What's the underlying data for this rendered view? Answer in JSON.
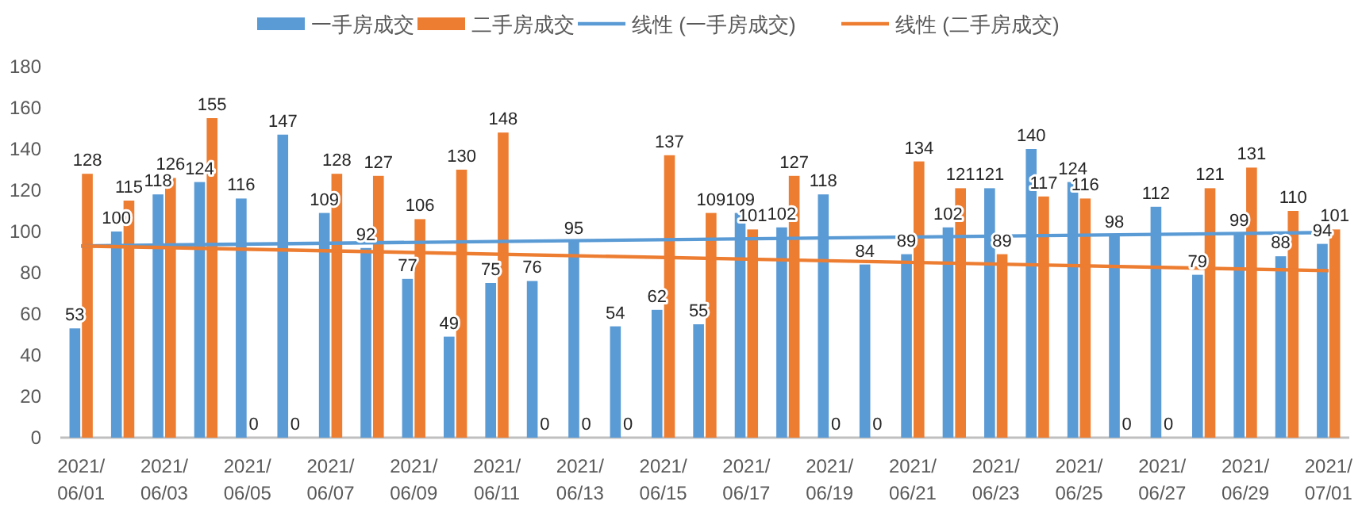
{
  "chart_data": {
    "type": "bar",
    "categories": [
      "2021/06/01",
      null,
      "2021/06/03",
      null,
      "2021/06/05",
      null,
      "2021/06/07",
      null,
      "2021/06/09",
      null,
      "2021/06/11",
      null,
      "2021/06/13",
      null,
      "2021/06/15",
      null,
      "2021/06/17",
      null,
      "2021/06/19",
      null,
      "2021/06/21",
      null,
      "2021/06/23",
      null,
      "2021/06/25",
      null,
      "2021/06/27",
      null,
      "2021/06/29",
      null,
      "2021/07/01"
    ],
    "series": [
      {
        "name": "一手房成交",
        "color": "#5b9bd5",
        "values": [
          53,
          100,
          118,
          124,
          116,
          147,
          109,
          92,
          77,
          49,
          75,
          76,
          95,
          54,
          62,
          55,
          109,
          102,
          118,
          84,
          89,
          102,
          121,
          140,
          124,
          98,
          112,
          79,
          99,
          88,
          94
        ],
        "value_labels": [
          "53",
          "100",
          "118",
          "124",
          "116",
          "147",
          "109",
          "92",
          "77",
          "49",
          "75",
          "76",
          "95",
          "54",
          "62",
          "55",
          "109",
          "102",
          "118",
          "84",
          "89",
          "102",
          "121",
          "140",
          "124",
          "98",
          "112",
          "79",
          "99",
          "88",
          "94"
        ]
      },
      {
        "name": "二手房成交",
        "color": "#ed7d31",
        "values": [
          128,
          115,
          126,
          155,
          0,
          0,
          128,
          127,
          106,
          130,
          148,
          0,
          0,
          0,
          137,
          109,
          101,
          127,
          0,
          0,
          134,
          121,
          89,
          117,
          116,
          0,
          0,
          121,
          131,
          110,
          101
        ],
        "value_labels": [
          "128",
          "115",
          "126",
          "155",
          "0",
          "0",
          "128",
          "127",
          "106",
          "130",
          "148",
          "0",
          "0",
          "0",
          "137",
          "109",
          "101",
          "127",
          "0",
          "0",
          "134",
          "121",
          "89",
          "117",
          "116",
          "0",
          "0",
          "121",
          "131",
          "110",
          "101"
        ]
      },
      {
        "name": "线性 (一手房成交)",
        "type": "line",
        "color": "#5b9bd5",
        "x": [
          "2021/06/01",
          "2021/07/01"
        ],
        "values": [
          93,
          99.5
        ]
      },
      {
        "name": "线性 (二手房成交)",
        "type": "line",
        "color": "#ed7d31",
        "x": [
          "2021/06/01",
          "2021/07/01"
        ],
        "values": [
          93,
          81
        ]
      }
    ],
    "ylim": [
      0,
      180
    ],
    "yticks": [
      0,
      20,
      40,
      60,
      80,
      100,
      120,
      140,
      160,
      180
    ],
    "legend": "top",
    "grid": false
  }
}
